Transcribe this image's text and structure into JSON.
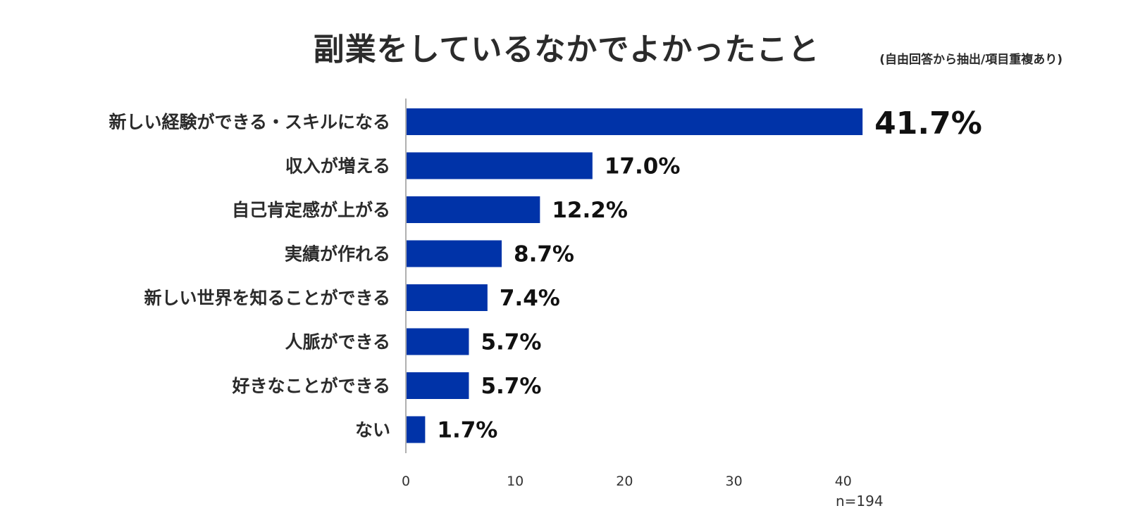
{
  "chart_data": {
    "type": "bar",
    "orientation": "horizontal",
    "title": "副業をしているなかでよかったこと",
    "subtitle": "(自由回答から抽出/項目重複あり)",
    "categories": [
      "新しい経験ができる・スキルになる",
      "収入が増える",
      "自己肯定感が上がる",
      "実績が作れる",
      "新しい世界を知ることができる",
      "人脈ができる",
      "好きなことができる",
      "ない"
    ],
    "values": [
      41.7,
      17.0,
      12.2,
      8.7,
      7.4,
      5.7,
      5.7,
      1.7
    ],
    "value_labels": [
      "41.7%",
      "17.0%",
      "12.2%",
      "8.7%",
      "7.4%",
      "5.7%",
      "5.7%",
      "1.7%"
    ],
    "xlim": [
      0,
      40
    ],
    "xticks": [
      "0",
      "10",
      "20",
      "30",
      "40"
    ],
    "xtick_values": [
      0,
      10,
      20,
      30,
      40
    ],
    "bar_color": "#0033a8",
    "grid": false,
    "legend": "none",
    "note": "n=194"
  }
}
